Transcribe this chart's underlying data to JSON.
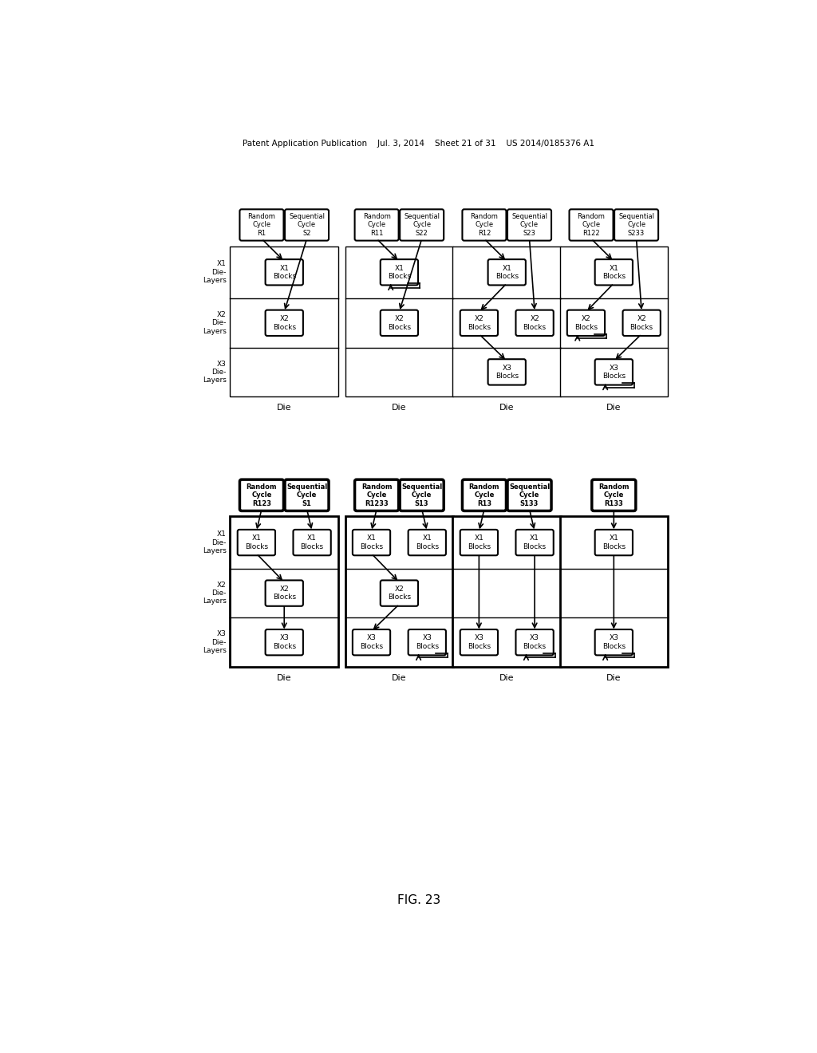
{
  "title_header": "Patent Application Publication    Jul. 3, 2014    Sheet 21 of 31    US 2014/0185376 A1",
  "fig_label": "FIG. 23",
  "bg_color": "#ffffff",
  "top_row": {
    "dies": [
      {
        "random_label": "Random\nCycle\nR1",
        "seq_label": "Sequential\nCycle\nS2",
        "x1_blocks": [
          {
            "col": 0,
            "label": "X1\nBlocks"
          }
        ],
        "x2_blocks": [
          {
            "col": 1,
            "label": "X2\nBlocks"
          }
        ],
        "x3_blocks": [],
        "rand_targets": [
          "x1_0"
        ],
        "seq_targets": [
          "x2_0"
        ],
        "connections": [
          {
            "from": "x1_0",
            "to": "x2_skip"
          }
        ],
        "feedback": []
      },
      {
        "random_label": "Random\nCycle\nR11",
        "seq_label": "Sequential\nCycle\nS22",
        "x1_blocks": [
          {
            "col": 0,
            "label": "X1\nBlocks"
          }
        ],
        "x2_blocks": [
          {
            "col": 1,
            "label": "X2\nBlocks"
          }
        ],
        "x3_blocks": [],
        "rand_targets": [
          "x1_0"
        ],
        "seq_targets": [
          "x2_0"
        ],
        "connections": [],
        "feedback": [
          "x1",
          "x2"
        ]
      },
      {
        "random_label": "Random\nCycle\nR12",
        "seq_label": "Sequential\nCycle\nS23",
        "x1_blocks": [
          {
            "col": 0,
            "label": "X1\nBlocks"
          }
        ],
        "x2_blocks": [
          {
            "col": 0,
            "label": "X2\nBlocks"
          },
          {
            "col": 1,
            "label": "X2\nBlocks"
          }
        ],
        "x3_blocks": [
          {
            "col": 0,
            "label": "X3\nBlocks"
          }
        ],
        "rand_targets": [
          "x1_0"
        ],
        "seq_targets": [
          "x2_1"
        ],
        "connections": [
          {
            "from": "x1",
            "to": "x2_0"
          },
          {
            "from": "x2_0",
            "to": "x3_0"
          }
        ],
        "feedback": []
      },
      {
        "random_label": "Random\nCycle\nR122",
        "seq_label": "Sequential\nCycle\nS233",
        "x1_blocks": [
          {
            "col": 0,
            "label": "X1\nBlocks"
          }
        ],
        "x2_blocks": [
          {
            "col": 0,
            "label": "X2\nBlocks"
          },
          {
            "col": 1,
            "label": "X2\nBlocks"
          }
        ],
        "x3_blocks": [
          {
            "col": 1,
            "label": "X3\nBlocks"
          }
        ],
        "rand_targets": [
          "x1_0"
        ],
        "seq_targets": [
          "x2_1"
        ],
        "connections": [
          {
            "from": "x1",
            "to": "x2_0"
          },
          {
            "from": "x2_1",
            "to": "x3_0"
          }
        ],
        "feedback": [
          "x2",
          "x3"
        ]
      }
    ]
  },
  "bottom_row": {
    "dies": [
      {
        "random_label": "Random\nCycle\nR123",
        "seq_label": "Sequential\nCycle\nS1",
        "x1_blocks": [
          {
            "col": 0,
            "label": "X1\nBlocks"
          },
          {
            "col": 1,
            "label": "X1\nBlocks"
          }
        ],
        "x2_blocks": [
          {
            "col": 0,
            "label": "X2\nBlocks"
          }
        ],
        "x3_blocks": [
          {
            "col": 0,
            "label": "X3\nBlocks"
          }
        ],
        "rand_targets": [
          "x1_0"
        ],
        "seq_targets": [
          "x1_1"
        ],
        "connections": [
          {
            "from": "x1_0",
            "to": "x2_0"
          },
          {
            "from": "x2_0",
            "to": "x3_0"
          }
        ],
        "feedback": [],
        "bold": true
      },
      {
        "random_label": "Random\nCycle\nR1233",
        "seq_label": "Sequential\nCycle\nS13",
        "x1_blocks": [
          {
            "col": 0,
            "label": "X1\nBlocks"
          },
          {
            "col": 1,
            "label": "X1\nBlocks"
          }
        ],
        "x2_blocks": [
          {
            "col": 0,
            "label": "X2\nBlocks"
          }
        ],
        "x3_blocks": [
          {
            "col": 0,
            "label": "X3\nBlocks"
          },
          {
            "col": 1,
            "label": "X3\nBlocks"
          }
        ],
        "rand_targets": [
          "x1_0"
        ],
        "seq_targets": [
          "x1_1"
        ],
        "connections": [
          {
            "from": "x1_0",
            "to": "x2_0"
          },
          {
            "from": "x2_0",
            "to": "x3_0"
          },
          {
            "from": "x2_0",
            "to": "x3_1"
          }
        ],
        "feedback": [
          "x3"
        ],
        "bold": true
      },
      {
        "random_label": "Random\nCycle\nR13",
        "seq_label": "Sequential\nCycle\nS133",
        "x1_blocks": [
          {
            "col": 0,
            "label": "X1\nBlocks"
          },
          {
            "col": 1,
            "label": "X1\nBlocks"
          }
        ],
        "x2_blocks": [],
        "x3_blocks": [
          {
            "col": 0,
            "label": "X3\nBlocks"
          },
          {
            "col": 1,
            "label": "X3\nBlocks"
          }
        ],
        "rand_targets": [
          "x1_0"
        ],
        "seq_targets": [
          "x1_1"
        ],
        "connections": [
          {
            "from": "x1_0",
            "to": "x3_0"
          },
          {
            "from": "x1_1",
            "to": "x3_1"
          }
        ],
        "feedback": [
          "x3"
        ],
        "bold": true
      },
      {
        "random_label": "Random\nCycle\nR133",
        "seq_label": null,
        "x1_blocks": [
          {
            "col": 0,
            "label": "X1\nBlocks"
          }
        ],
        "x2_blocks": [],
        "x3_blocks": [
          {
            "col": 0,
            "label": "X3\nBlocks"
          }
        ],
        "rand_targets": [
          "x1_0"
        ],
        "seq_targets": [],
        "connections": [
          {
            "from": "x1_0",
            "to": "x3_0"
          }
        ],
        "feedback": [
          "x3"
        ],
        "bold": true
      }
    ]
  }
}
